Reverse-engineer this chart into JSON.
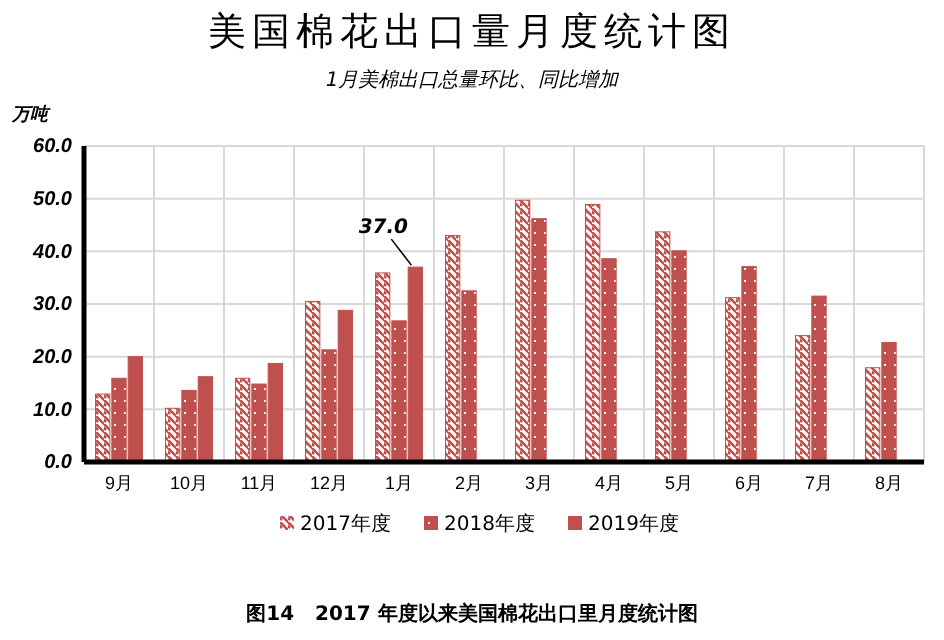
{
  "chart_data": {
    "type": "bar",
    "title": "美国棉花出口量月度统计图",
    "subtitle": "1月美棉出口总量环比、同比增加",
    "ylabel": "万吨",
    "categories": [
      "9月",
      "10月",
      "11月",
      "12月",
      "1月",
      "2月",
      "3月",
      "4月",
      "5月",
      "6月",
      "7月",
      "8月"
    ],
    "series": [
      {
        "name": "2017年度",
        "color": "#c0504d",
        "values": [
          12.9,
          10.2,
          15.9,
          30.5,
          35.9,
          43.0,
          49.7,
          48.9,
          43.7,
          31.2,
          24.0,
          17.9
        ]
      },
      {
        "name": "2018年度",
        "color": "#c0504d",
        "values": [
          15.9,
          13.6,
          14.8,
          21.3,
          26.8,
          32.5,
          46.2,
          38.6,
          40.1,
          37.1,
          31.5,
          22.7
        ]
      },
      {
        "name": "2019年度",
        "color": "#c0504d",
        "values": [
          20.0,
          16.2,
          18.7,
          28.8,
          37.0,
          null,
          null,
          null,
          null,
          null,
          null,
          null
        ]
      }
    ],
    "ylim": [
      0,
      60
    ],
    "yticks": [
      {
        "value": 0,
        "label": "0.0"
      },
      {
        "value": 10,
        "label": "10.0"
      },
      {
        "value": 20,
        "label": "20.0"
      },
      {
        "value": 30,
        "label": "30.0"
      },
      {
        "value": 40,
        "label": "40.0"
      },
      {
        "value": 50,
        "label": "50.0"
      },
      {
        "value": 60,
        "label": "60.0"
      }
    ],
    "grid": true,
    "legend": "bottom",
    "annotations": [
      {
        "text": "37.0",
        "x": "1月",
        "y": 37.0
      },
      "图14   2017 年度以来美国棉花出口里月度统计图"
    ]
  }
}
